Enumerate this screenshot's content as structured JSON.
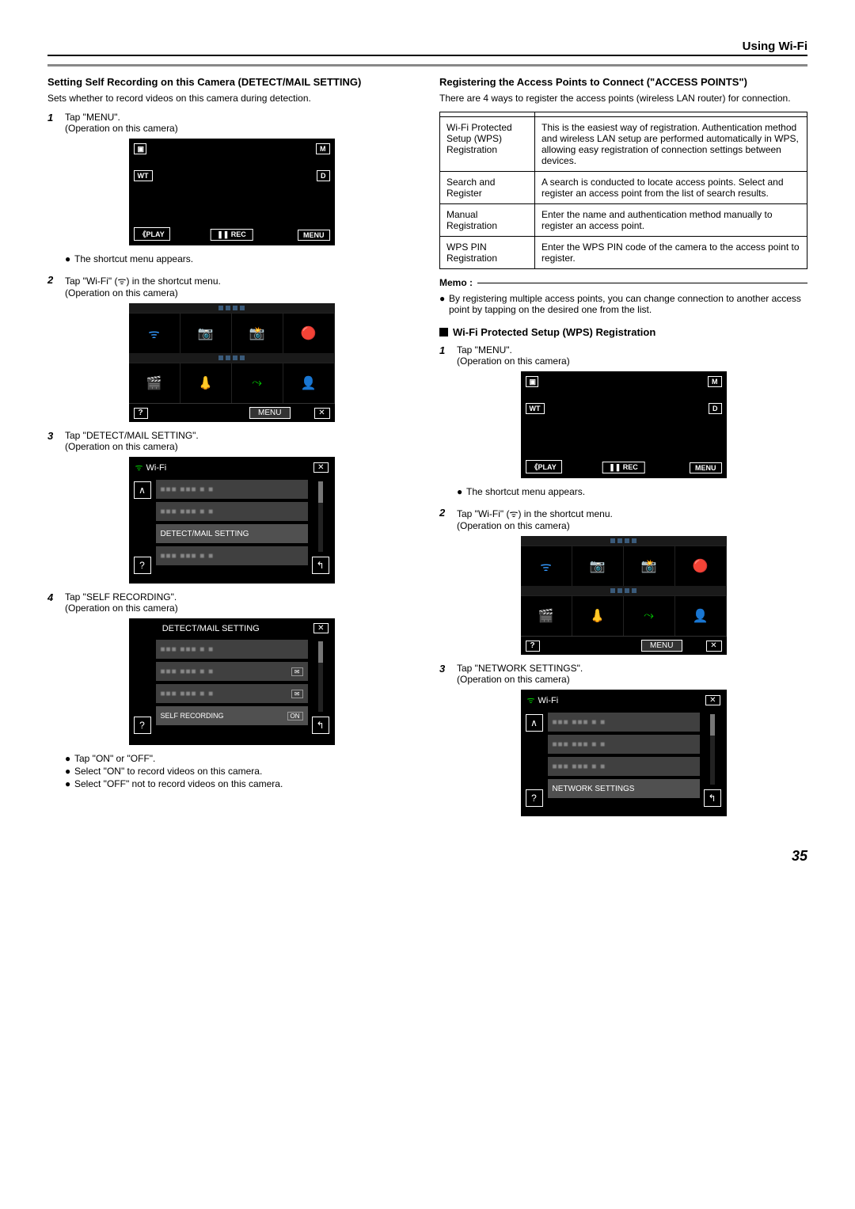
{
  "header": {
    "title": "Using Wi-Fi"
  },
  "page_number": "35",
  "left": {
    "section_title": "Setting Self Recording on this Camera (DETECT/MAIL SETTING)",
    "intro": "Sets whether to record videos on this camera during detection.",
    "steps": [
      {
        "num": "1",
        "text": "Tap \"MENU\".",
        "sub": "(Operation on this camera)",
        "after_bullets": [
          "The shortcut menu appears."
        ]
      },
      {
        "num": "2",
        "text": "Tap \"Wi-Fi\" (ᯤ) in the shortcut menu.",
        "sub": "(Operation on this camera)"
      },
      {
        "num": "3",
        "text": "Tap \"DETECT/MAIL SETTING\".",
        "sub": "(Operation on this camera)"
      },
      {
        "num": "4",
        "text": "Tap \"SELF RECORDING\".",
        "sub": "(Operation on this camera)",
        "after_bullets": [
          "Tap \"ON\" or \"OFF\".",
          "Select \"ON\" to record videos on this camera.",
          "Select \"OFF\" not to record videos on this camera."
        ]
      }
    ],
    "lcd_main": {
      "m": "M",
      "d": "D",
      "wt": "WT",
      "play": "PLAY",
      "rec": "REC",
      "menu": "MENU"
    },
    "lcd_shortcut": {
      "menu": "MENU",
      "help": "?",
      "close": "✕"
    },
    "lcd_wifi": {
      "title": "Wi-Fi",
      "up": "∧",
      "help": "?",
      "back": "↰",
      "close": "✕",
      "items_blur": "■■■ ■■■ ■ ■",
      "highlight": "DETECT/MAIL SETTING"
    },
    "lcd_detect": {
      "title": "DETECT/MAIL SETTING",
      "items_blur": "■■■ ■■■ ■ ■",
      "highlight": "SELF RECORDING",
      "on": "ON",
      "help": "?",
      "back": "↰",
      "close": "✕"
    }
  },
  "right": {
    "section_title": "Registering the Access Points to Connect (\"ACCESS POINTS\")",
    "intro": "There are 4 ways to register the access points (wireless LAN router) for connection.",
    "table": {
      "rows": [
        {
          "c1": "Wi-Fi Protected Setup (WPS) Registration",
          "c2": "This is the easiest way of registration. Authentication method and wireless LAN setup are performed automatically in WPS, allowing easy registration of connection settings between devices."
        },
        {
          "c1": "Search and Register",
          "c2": "A search is conducted to locate access points. Select and register an access point from the list of search results."
        },
        {
          "c1": "Manual Registration",
          "c2": "Enter the name and authentication method manually to register an access point."
        },
        {
          "c1": "WPS PIN Registration",
          "c2": "Enter the WPS PIN code of the camera to the access point to register."
        }
      ]
    },
    "memo": {
      "label": "Memo :",
      "bullets": [
        "By registering multiple access points, you can change connection to another access point by tapping on the desired one from the list."
      ]
    },
    "subsection": "Wi-Fi Protected Setup (WPS) Registration",
    "steps": [
      {
        "num": "1",
        "text": "Tap \"MENU\".",
        "sub": "(Operation on this camera)",
        "after_bullets": [
          "The shortcut menu appears."
        ]
      },
      {
        "num": "2",
        "text": "Tap \"Wi-Fi\" (ᯤ) in the shortcut menu.",
        "sub": "(Operation on this camera)"
      },
      {
        "num": "3",
        "text": "Tap \"NETWORK SETTINGS\".",
        "sub": "(Operation on this camera)"
      }
    ],
    "lcd_main": {
      "m": "M",
      "d": "D",
      "wt": "WT",
      "play": "PLAY",
      "rec": "REC",
      "menu": "MENU"
    },
    "lcd_shortcut": {
      "menu": "MENU",
      "help": "?",
      "close": "✕"
    },
    "lcd_network": {
      "title": "Wi-Fi",
      "up": "∧",
      "help": "?",
      "back": "↰",
      "close": "✕",
      "items_blur": "■■■ ■■■ ■ ■",
      "highlight": "NETWORK SETTINGS"
    }
  }
}
